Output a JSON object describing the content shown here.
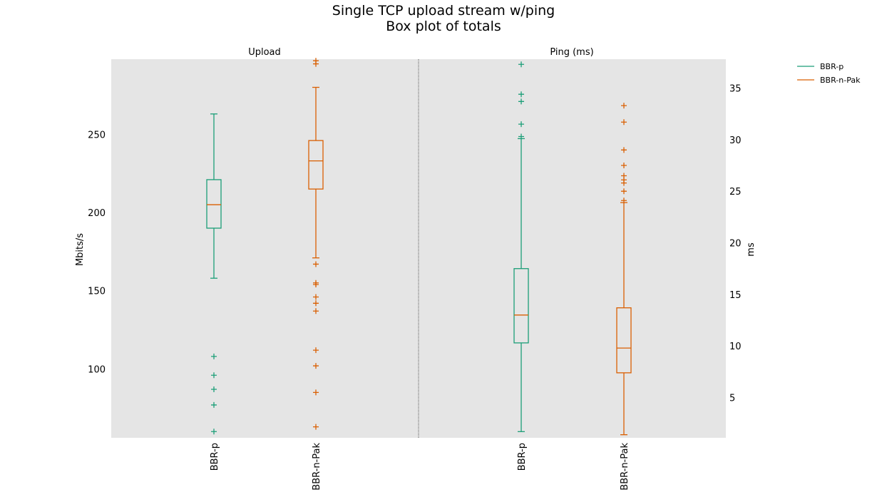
{
  "chart_data": {
    "type": "boxplot",
    "title": "Single TCP upload stream w/ping",
    "subtitle": "Box plot of totals",
    "colors": {
      "BBR-p": "#1b9e77",
      "BBR-n-Pak": "#d95f02",
      "median_color": "#d95f02",
      "background": "#e5e5e5"
    },
    "legend": {
      "position": "outside-top-right",
      "entries": [
        "BBR-p",
        "BBR-n-Pak"
      ]
    },
    "panels": [
      {
        "title": "Upload",
        "ylabel": "Mbits/s",
        "y_axis_side": "left",
        "ylim": [
          56,
          298
        ],
        "yticks": [
          100,
          150,
          200,
          250
        ],
        "categories": [
          "BBR-p",
          "BBR-n-Pak"
        ],
        "boxes": [
          {
            "name": "BBR-p",
            "whisker_low": 158,
            "q1": 190,
            "median": 205,
            "q3": 221,
            "whisker_high": 263,
            "outliers": [
              108,
              96,
              87,
              77,
              60
            ]
          },
          {
            "name": "BBR-n-Pak",
            "whisker_low": 171,
            "q1": 215,
            "median": 233,
            "q3": 246,
            "whisker_high": 280,
            "outliers": [
              297,
              295,
              167,
              155,
              154,
              146,
              142,
              137,
              112,
              102,
              85,
              63
            ]
          }
        ]
      },
      {
        "title": "Ping (ms)",
        "ylabel": "ms",
        "y_axis_side": "right",
        "ylim": [
          1.1,
          37.8
        ],
        "yticks": [
          5,
          10,
          15,
          20,
          25,
          30,
          35
        ],
        "categories": [
          "BBR-p",
          "BBR-n-Pak"
        ],
        "boxes": [
          {
            "name": "BBR-p",
            "whisker_low": 1.7,
            "q1": 10.3,
            "median": 13.0,
            "q3": 17.5,
            "whisker_high": 30.1,
            "outliers": [
              37.3,
              34.4,
              33.7,
              31.5,
              30.3
            ]
          },
          {
            "name": "BBR-n-Pak",
            "whisker_low": 1.4,
            "q1": 7.4,
            "median": 9.8,
            "q3": 13.7,
            "whisker_high": 23.9,
            "outliers": [
              33.3,
              31.7,
              29.0,
              27.5,
              26.5,
              26.1,
              25.8,
              25.0,
              24.1
            ]
          }
        ]
      }
    ]
  }
}
